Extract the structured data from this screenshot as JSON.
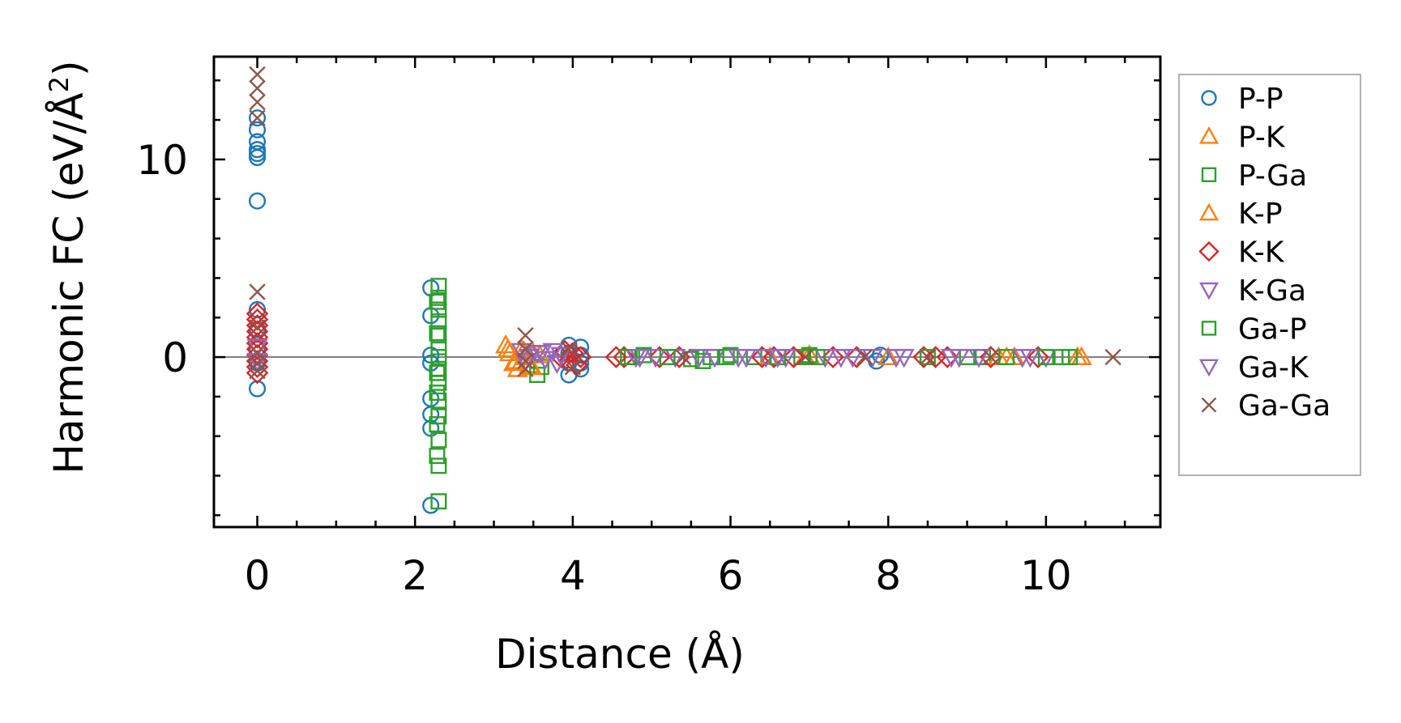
{
  "chart_data": {
    "type": "scatter",
    "xlabel": "Distance (Å)",
    "ylabel_main": "Harmonic FC (eV/Å",
    "ylabel_sup": "2",
    "ylabel_end": ")",
    "xlim": [
      -0.55,
      11.45
    ],
    "ylim": [
      -8.6,
      15.2
    ],
    "xticks": [
      0,
      2,
      4,
      6,
      8,
      10
    ],
    "yticks": [
      0,
      10
    ],
    "grid": false,
    "zero_line": true,
    "legend_position": "outside-right",
    "series": [
      {
        "name": "P-P",
        "marker": "circle",
        "color": "#1f77b4",
        "x": [
          0,
          0,
          0,
          0,
          0,
          0,
          0,
          0,
          0,
          0,
          0,
          0,
          2.2,
          2.2,
          2.2,
          2.2,
          2.2,
          2.2,
          2.2,
          2.2,
          3.95,
          3.95,
          3.95,
          3.95,
          4.1,
          4.1,
          4.1,
          4.1,
          7.85,
          7.9
        ],
        "y": [
          12.1,
          11.5,
          10.9,
          10.5,
          10.3,
          10.1,
          7.9,
          2.4,
          1.4,
          0.4,
          -0.3,
          -1.6,
          3.5,
          2.1,
          0.1,
          -0.3,
          -2.1,
          -2.9,
          -3.6,
          -7.5,
          0.6,
          0.2,
          -0.3,
          -0.9,
          0.5,
          0.1,
          -0.3,
          -0.6,
          -0.2,
          0.1
        ]
      },
      {
        "name": "P-K",
        "marker": "triangle-up",
        "color": "#ff7f0e",
        "x": [
          3.15,
          3.2,
          3.25,
          3.3,
          3.35,
          3.4,
          3.45,
          3.5,
          6.95,
          7.0,
          9.5,
          9.6,
          10.4,
          10.45
        ],
        "y": [
          0.6,
          0.2,
          -0.3,
          -0.6,
          0.4,
          0.0,
          -0.4,
          0.2,
          0.0,
          0.1,
          0.0,
          0.0,
          0.0,
          0.0
        ]
      },
      {
        "name": "P-Ga",
        "marker": "square",
        "color": "#2ca02c",
        "x": [
          2.3,
          2.3,
          2.3,
          2.3,
          2.3,
          2.3,
          2.3,
          2.3,
          2.3,
          2.3,
          2.3,
          2.3,
          2.3,
          2.3,
          3.55,
          3.6,
          4.75,
          4.9,
          5.5,
          5.65,
          5.75,
          6.0,
          6.3,
          6.9,
          7.0,
          9.0,
          9.2,
          10.2,
          10.3
        ],
        "y": [
          3.6,
          3.0,
          2.4,
          1.8,
          1.1,
          0.5,
          0.0,
          -0.6,
          -1.3,
          -2.2,
          -3.0,
          -4.2,
          -5.5,
          -7.3,
          -0.9,
          -0.5,
          0.0,
          0.1,
          -0.1,
          -0.2,
          0.0,
          0.1,
          0.0,
          0.0,
          0.1,
          0.0,
          0.0,
          0.0,
          0.0
        ]
      },
      {
        "name": "K-P",
        "marker": "triangle-up",
        "color": "#ff7f0e",
        "x": [
          3.18,
          3.28,
          3.38,
          3.48,
          3.58,
          6.5,
          8.0,
          9.4
        ],
        "y": [
          0.4,
          -0.2,
          0.3,
          -0.5,
          0.1,
          0.0,
          0.0,
          0.0
        ]
      },
      {
        "name": "K-K",
        "marker": "diamond",
        "color": "#d62728",
        "x": [
          0,
          0,
          0,
          0,
          0,
          0,
          0,
          0,
          0,
          0,
          0,
          3.85,
          3.9,
          3.95,
          4.0,
          4.05,
          4.1,
          4.55,
          4.65,
          5.1,
          5.35,
          6.4,
          6.55,
          6.8,
          7.3,
          7.6,
          8.45,
          8.6,
          8.75,
          9.3,
          9.9
        ],
        "y": [
          2.2,
          1.9,
          1.6,
          1.3,
          1.0,
          0.7,
          0.4,
          0.1,
          -0.2,
          -0.5,
          -0.8,
          0.0,
          0.3,
          -0.2,
          0.2,
          -0.4,
          0.0,
          0.0,
          0.0,
          0.0,
          0.0,
          0.0,
          0.0,
          0.0,
          0.0,
          0.0,
          0.0,
          0.0,
          0.0,
          0.0,
          0.0
        ]
      },
      {
        "name": "K-Ga",
        "marker": "triangle-down",
        "color": "#9467bd",
        "x": [
          0,
          0,
          3.35,
          3.45,
          3.55,
          3.65,
          3.75,
          3.85,
          4.8,
          5.05,
          5.3,
          5.8,
          6.2,
          6.45,
          6.7,
          7.2,
          7.55,
          7.8,
          8.2,
          8.9,
          9.15,
          9.8,
          10.0
        ],
        "y": [
          0.5,
          -0.2,
          0.3,
          0.0,
          0.2,
          -0.1,
          0.3,
          0.1,
          0.0,
          0.0,
          0.0,
          0.0,
          0.0,
          0.0,
          0.0,
          0.0,
          0.0,
          0.0,
          0.0,
          0.0,
          0.0,
          0.0,
          0.0
        ]
      },
      {
        "name": "Ga-P",
        "marker": "square",
        "color": "#2ca02c",
        "x": [
          2.28,
          2.28,
          2.28,
          2.28,
          2.28,
          2.28,
          4.7,
          5.2,
          5.95,
          6.6,
          7.1,
          8.5,
          9.5,
          10.0
        ],
        "y": [
          2.8,
          1.2,
          -0.8,
          -1.8,
          -3.4,
          -5.0,
          0.0,
          0.0,
          0.0,
          0.0,
          0.0,
          0.0,
          0.0,
          0.0
        ]
      },
      {
        "name": "Ga-K",
        "marker": "triangle-down",
        "color": "#9467bd",
        "x": [
          3.4,
          3.6,
          3.8,
          4.85,
          5.6,
          6.1,
          6.6,
          7.4,
          8.1,
          8.8,
          9.7
        ],
        "y": [
          -0.2,
          0.2,
          -0.3,
          0.0,
          0.0,
          0.0,
          0.0,
          0.0,
          0.0,
          0.0,
          0.0
        ]
      },
      {
        "name": "Ga-Ga",
        "marker": "x",
        "color": "#8c564b",
        "x": [
          0,
          0,
          0,
          0,
          0,
          0,
          0,
          0,
          0,
          3.4,
          3.4,
          3.4,
          3.4,
          3.95,
          4.0,
          5.4,
          6.95,
          7.7,
          8.5,
          9.3,
          10.85
        ],
        "y": [
          14.3,
          13.6,
          12.9,
          12.1,
          3.3,
          1.5,
          0.2,
          -0.3,
          -0.7,
          1.1,
          0.4,
          -0.2,
          -0.6,
          0.4,
          -0.5,
          0.0,
          0.0,
          0.0,
          0.0,
          0.0,
          0.0
        ]
      }
    ]
  }
}
